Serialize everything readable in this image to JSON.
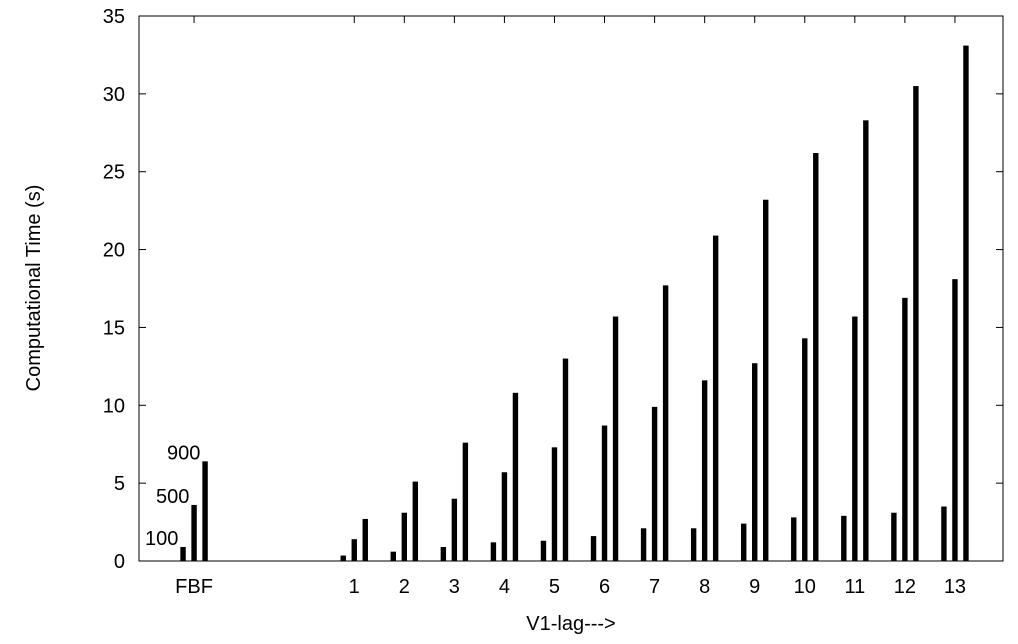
{
  "chart_data": {
    "type": "bar",
    "title": "",
    "xlabel": "V1-lag--->",
    "ylabel": "Computational Time (s)",
    "ylim": [
      0,
      35
    ],
    "yticks": [
      0,
      5,
      10,
      15,
      20,
      25,
      30,
      35
    ],
    "grid": false,
    "legend": "none",
    "bar_color": "#000000",
    "categories": [
      "FBF",
      "1",
      "2",
      "3",
      "4",
      "5",
      "6",
      "7",
      "8",
      "9",
      "10",
      "11",
      "12",
      "13"
    ],
    "category_x": [
      0,
      1.6,
      2.1,
      2.6,
      3.1,
      3.6,
      4.1,
      4.6,
      5.1,
      5.6,
      6.1,
      6.6,
      7.1,
      7.6
    ],
    "series": [
      {
        "name": "100",
        "values": [
          0.9,
          0.35,
          0.6,
          0.9,
          1.2,
          1.3,
          1.6,
          2.1,
          2.1,
          2.4,
          2.8,
          2.9,
          3.1,
          3.5
        ]
      },
      {
        "name": "500",
        "values": [
          3.6,
          1.4,
          3.1,
          4.0,
          5.7,
          7.3,
          8.7,
          9.9,
          11.6,
          12.7,
          14.3,
          15.7,
          16.9,
          18.1
        ]
      },
      {
        "name": "900",
        "values": [
          6.4,
          2.7,
          5.1,
          7.6,
          10.8,
          13.0,
          15.7,
          17.7,
          20.9,
          23.2,
          26.2,
          28.3,
          30.5,
          33.1
        ]
      }
    ],
    "annotations": [
      {
        "text": "100",
        "series_index": 0,
        "category_index": 0
      },
      {
        "text": "500",
        "series_index": 1,
        "category_index": 0
      },
      {
        "text": "900",
        "series_index": 2,
        "category_index": 0
      }
    ]
  }
}
